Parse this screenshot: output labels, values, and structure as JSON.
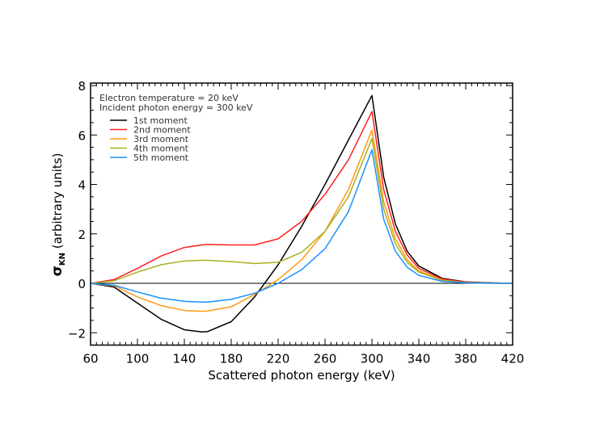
{
  "chart_data": {
    "type": "line",
    "title": "",
    "xlabel": "Scattered photon energy (keV)",
    "ylabel": {
      "symbol": "σ",
      "subscript": "KN",
      "rest": " (arbitrary units)"
    },
    "xlim": [
      60,
      420
    ],
    "ylim": [
      -2.5,
      8.1
    ],
    "xticks": [
      60,
      100,
      140,
      180,
      220,
      260,
      300,
      340,
      380,
      420
    ],
    "yticks": [
      -2,
      0,
      2,
      4,
      6,
      8
    ],
    "ytick_labels": [
      "−2",
      "0",
      "2",
      "4",
      "6",
      "8"
    ],
    "grid": false,
    "zero_line": true,
    "annotations": [
      "Electron temperature = 20 keV",
      "Incident photon energy = 300 keV"
    ],
    "legend_placement": "top-left",
    "x": [
      60,
      80,
      100,
      120,
      140,
      155,
      160,
      180,
      200,
      220,
      240,
      260,
      280,
      300,
      310,
      320,
      330,
      340,
      360,
      380,
      400,
      420
    ],
    "series": [
      {
        "name": "1st moment",
        "color": "#000000",
        "values": [
          0,
          -0.15,
          -0.8,
          -1.45,
          -1.88,
          -1.97,
          -1.95,
          -1.55,
          -0.55,
          0.75,
          2.3,
          4.0,
          5.8,
          7.6,
          4.3,
          2.4,
          1.3,
          0.7,
          0.2,
          0.06,
          0.02,
          0
        ]
      },
      {
        "name": "2nd moment",
        "color": "#ff2020",
        "values": [
          0,
          0.15,
          0.6,
          1.1,
          1.45,
          1.55,
          1.57,
          1.55,
          1.55,
          1.8,
          2.5,
          3.6,
          5.0,
          6.95,
          3.8,
          2.1,
          1.15,
          0.6,
          0.17,
          0.05,
          0.01,
          0
        ]
      },
      {
        "name": "3rd moment",
        "color": "#ff9a10",
        "values": [
          0,
          -0.1,
          -0.55,
          -0.9,
          -1.1,
          -1.13,
          -1.12,
          -0.95,
          -0.45,
          0.15,
          0.95,
          2.1,
          3.8,
          6.2,
          3.3,
          1.8,
          0.95,
          0.5,
          0.13,
          0.03,
          0.01,
          0
        ]
      },
      {
        "name": "4th moment",
        "color": "#a8b020",
        "values": [
          0,
          0.1,
          0.45,
          0.75,
          0.9,
          0.93,
          0.93,
          0.88,
          0.8,
          0.85,
          1.25,
          2.1,
          3.5,
          5.86,
          3.0,
          1.6,
          0.85,
          0.45,
          0.12,
          0.03,
          0.01,
          0
        ]
      },
      {
        "name": "5th moment",
        "color": "#1a90ff",
        "values": [
          0,
          -0.08,
          -0.35,
          -0.6,
          -0.73,
          -0.76,
          -0.76,
          -0.65,
          -0.4,
          0.0,
          0.55,
          1.4,
          2.9,
          5.4,
          2.6,
          1.3,
          0.65,
          0.32,
          0.08,
          0.02,
          0,
          0
        ]
      }
    ]
  }
}
